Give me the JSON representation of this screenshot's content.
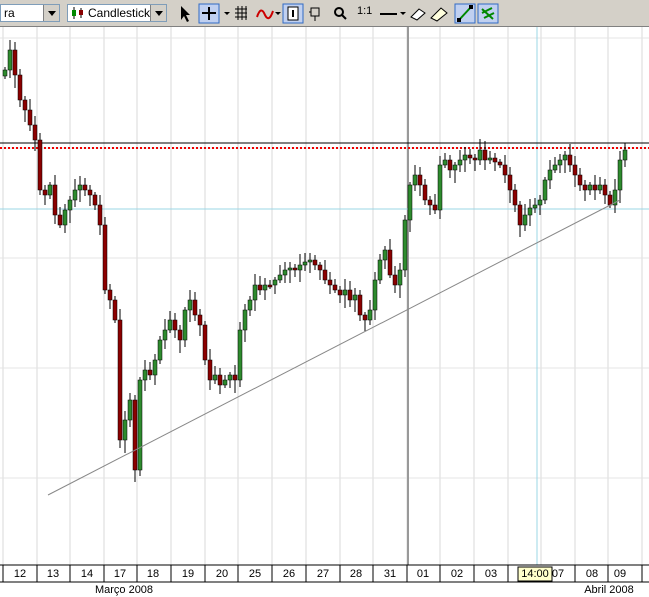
{
  "toolbar": {
    "symbol_box": "ra",
    "chart_style": "Candlestick",
    "zoom_label": "1:1"
  },
  "axis": {
    "dates": [
      "12",
      "13",
      "14",
      "17",
      "18",
      "19",
      "20",
      "25",
      "26",
      "27",
      "28",
      "31",
      "01",
      "02",
      "03",
      "14:00",
      "07",
      "08",
      "09"
    ],
    "months": [
      "Março 2008",
      "Abril 2008"
    ]
  }
}
